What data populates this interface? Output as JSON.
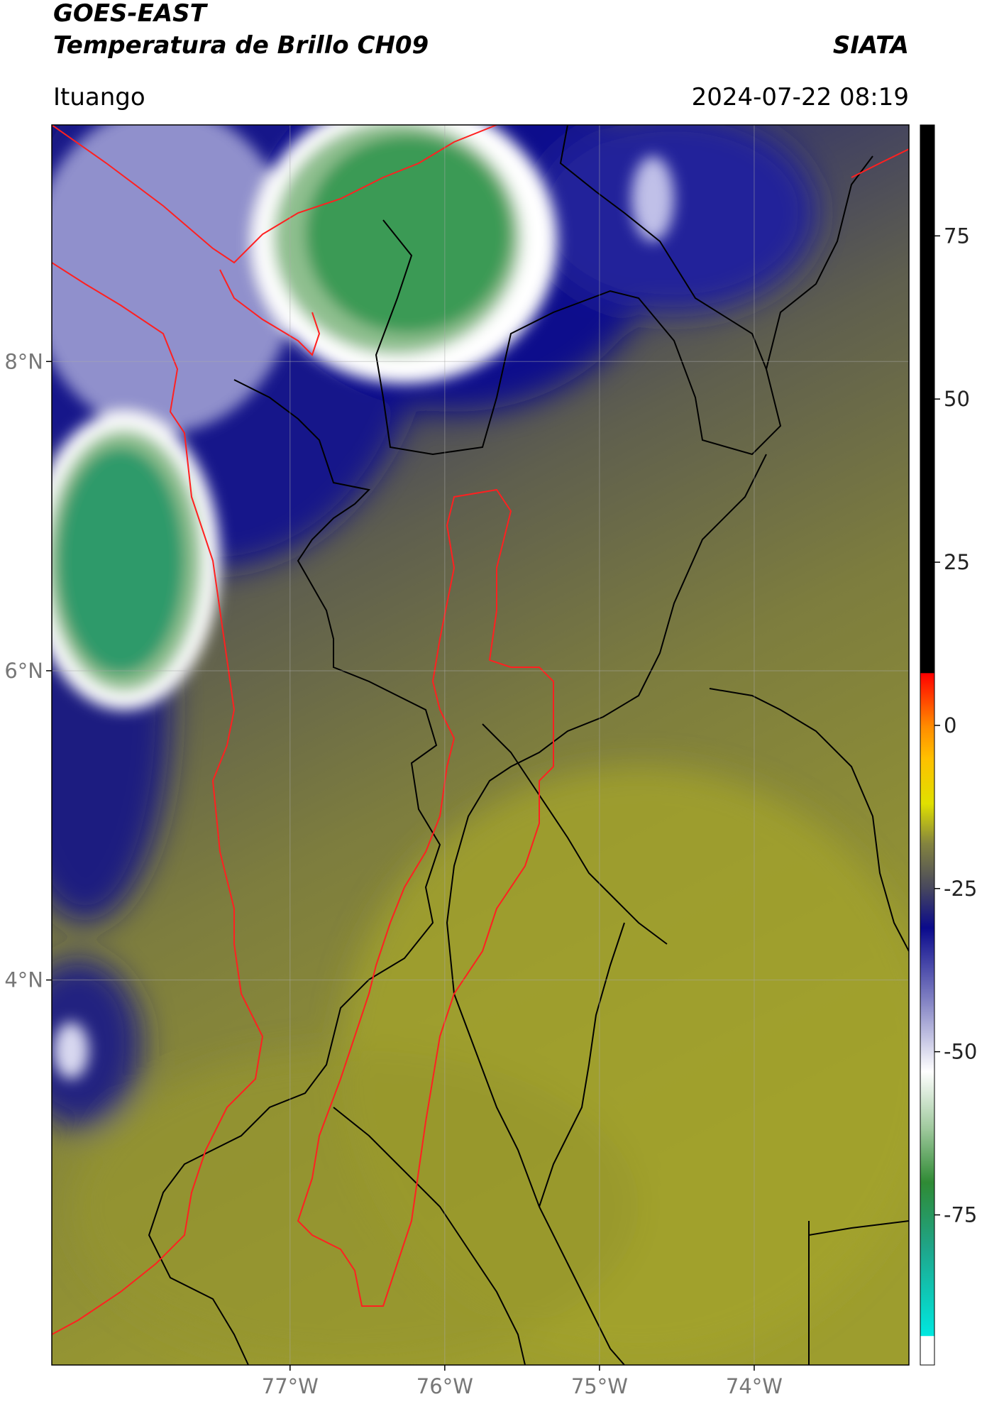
{
  "chart_data": {
    "type": "map",
    "title": "GOES-EAST",
    "subtitle": "Temperatura de Brillo CH09",
    "source": "SIATA",
    "location": "Ituango",
    "datetime": "2024-07-22 08:19",
    "xlim": [
      -78.54,
      -73.0
    ],
    "ylim": [
      1.51,
      9.53
    ],
    "xticks": [
      {
        "value": -77,
        "label": "77°W"
      },
      {
        "value": -76,
        "label": "76°W"
      },
      {
        "value": -75,
        "label": "75°W"
      },
      {
        "value": -74,
        "label": "74°W"
      }
    ],
    "yticks": [
      {
        "value": 8,
        "label": "8°N"
      },
      {
        "value": 6,
        "label": "6°N"
      },
      {
        "value": 4,
        "label": "4°N"
      }
    ],
    "grid": true,
    "colorbar": {
      "lim": [
        -98,
        92
      ],
      "ticks": [
        75,
        50,
        25,
        0,
        -25,
        -50,
        -75
      ],
      "colormap": [
        {
          "value": -98,
          "color": "#ffffff"
        },
        {
          "value": -93.5,
          "color": "#ffffff"
        },
        {
          "value": -93.5,
          "color": "#00e8e0"
        },
        {
          "value": -80,
          "color": "#1fa589"
        },
        {
          "value": -70,
          "color": "#2f8a34"
        },
        {
          "value": -62,
          "color": "#9cc79a"
        },
        {
          "value": -53,
          "color": "#ffffff"
        },
        {
          "value": -43,
          "color": "#8c8cc8"
        },
        {
          "value": -31,
          "color": "#0a0a8c"
        },
        {
          "value": -25,
          "color": "#46465e"
        },
        {
          "value": -18,
          "color": "#85853e"
        },
        {
          "value": -12,
          "color": "#e0e000"
        },
        {
          "value": -5,
          "color": "#ffc000"
        },
        {
          "value": 0,
          "color": "#ff8a00"
        },
        {
          "value": 8,
          "color": "#ff0000"
        },
        {
          "value": 8.1,
          "color": "#000000"
        },
        {
          "value": 92,
          "color": "#000000"
        }
      ]
    }
  }
}
